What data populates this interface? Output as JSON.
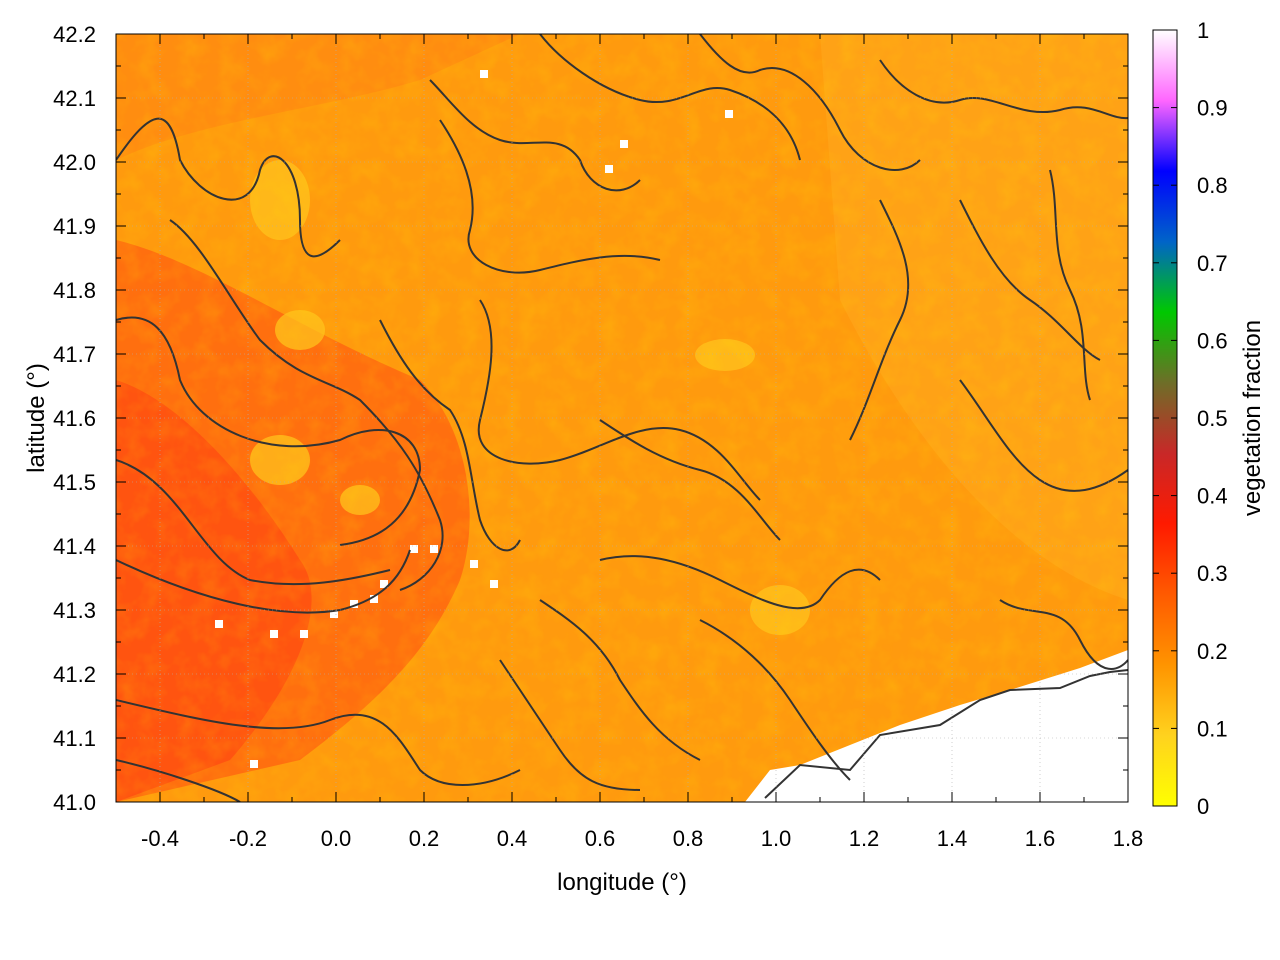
{
  "chart_data": {
    "type": "heatmap",
    "title": "",
    "xlabel": "longitude (°)",
    "ylabel": "latitude (°)",
    "xlim": [
      -0.5,
      1.8
    ],
    "ylim": [
      41.0,
      42.2
    ],
    "xticks": [
      "-0.4",
      "-0.2",
      "0.0",
      "0.2",
      "0.4",
      "0.6",
      "0.8",
      "1.0",
      "1.2",
      "1.4",
      "1.6",
      "1.8"
    ],
    "yticks": [
      "41.0",
      "41.1",
      "41.2",
      "41.3",
      "41.4",
      "41.5",
      "41.6",
      "41.7",
      "41.8",
      "41.9",
      "42.0",
      "42.1",
      "42.2"
    ],
    "grid": true,
    "colorbar": {
      "label": "vegetation fraction",
      "range": [
        0,
        1
      ],
      "ticks": [
        "0",
        "0.1",
        "0.2",
        "0.3",
        "0.4",
        "0.5",
        "0.6",
        "0.7",
        "0.8",
        "0.9",
        "1"
      ],
      "colors": [
        "#ffff00",
        "#ffd21e",
        "#ff9400",
        "#ff5a00",
        "#ff1a00",
        "#c82828",
        "#6e6e28",
        "#00c800",
        "#0064c8",
        "#0000ff",
        "#ff66ff",
        "#ffffff"
      ]
    },
    "map_description_values": {
      "dominant_fraction_range": [
        0.1,
        0.3
      ],
      "west_values": 0.22,
      "east_values": 0.15
    },
    "contour_color": "#333333",
    "no_data_color": "#ffffff"
  }
}
